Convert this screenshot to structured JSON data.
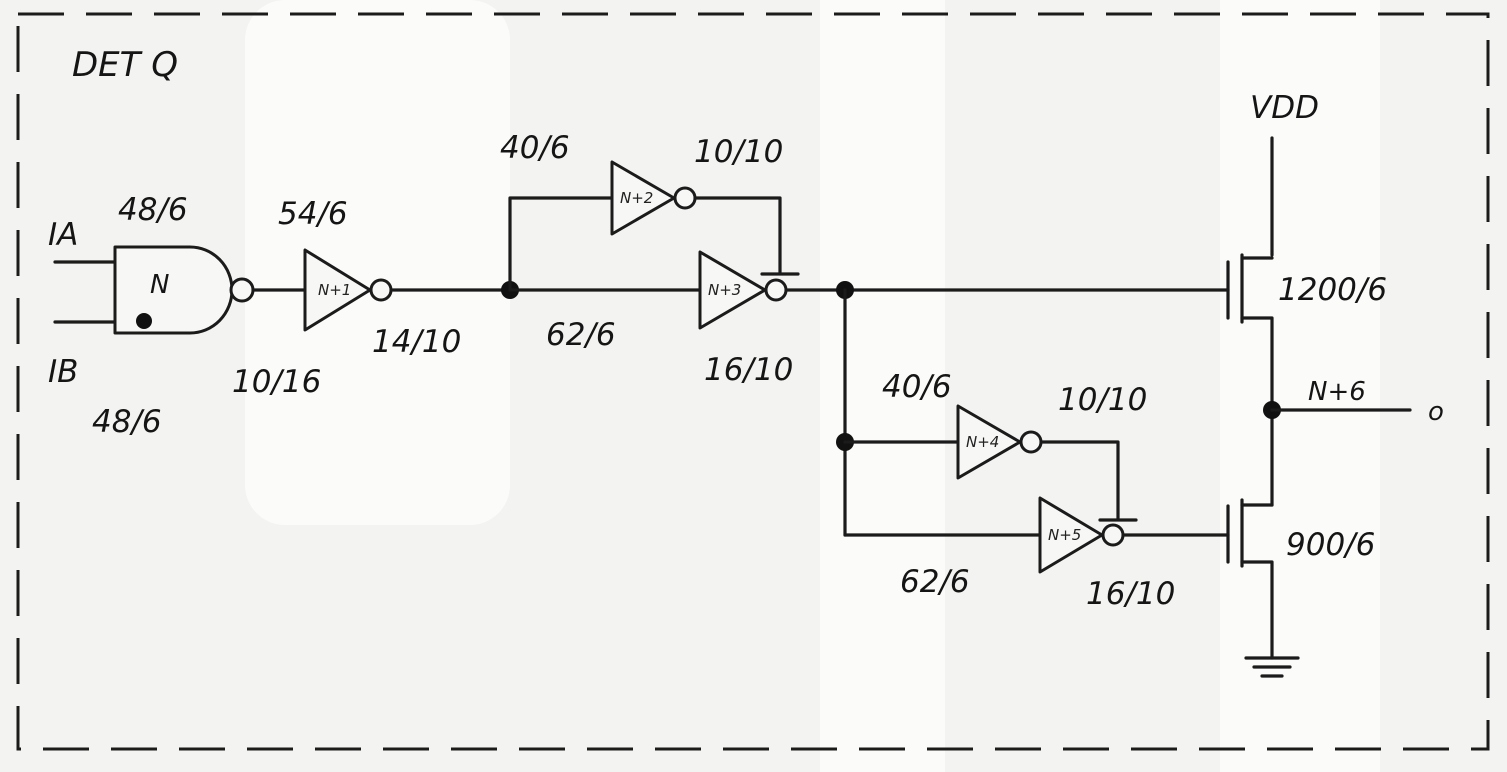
{
  "title": "DET Q",
  "supply_label": "VDD",
  "inputs": {
    "a": "IA",
    "b": "IB"
  },
  "output": {
    "node_label": "N+6",
    "terminal_glyph": "o"
  },
  "gates": {
    "nand": {
      "label": "N",
      "size_top": "48/6",
      "size_bottom": "48/6",
      "size_output": "10/16"
    },
    "inv1": {
      "label": "N+1",
      "size_top": "54/6",
      "size_output": "14/10"
    },
    "inv2": {
      "label": "N+2",
      "size_top": "40/6",
      "size_output": "10/10"
    },
    "inv3": {
      "label": "N+3",
      "size_bottom": "62/6",
      "size_output": "16/10"
    },
    "inv4": {
      "label": "N+4",
      "size_top": "40/6",
      "size_output": "10/10"
    },
    "inv5": {
      "label": "N+5",
      "size_bottom": "62/6",
      "size_output": "16/10"
    }
  },
  "transistors": {
    "pull_up": "1200/6",
    "pull_down": "900/6"
  }
}
